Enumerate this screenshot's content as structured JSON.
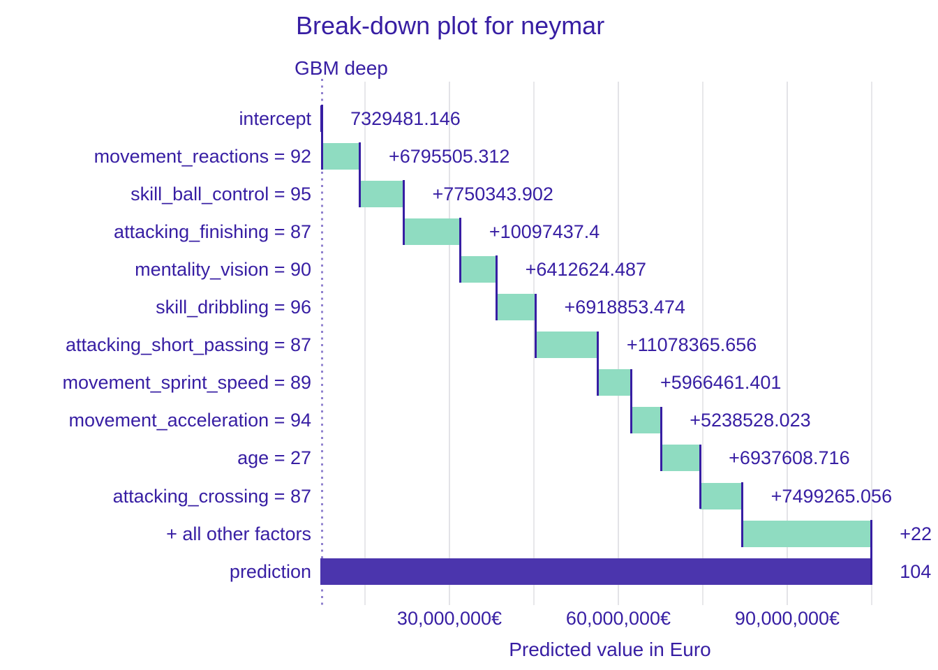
{
  "chart_data": {
    "type": "bar",
    "variant": "waterfall-breakdown",
    "title": "Break-down plot for neymar",
    "subtitle": "GBM deep",
    "xlabel": "Predicted value in Euro",
    "x_axis": {
      "ticks": [
        {
          "value": 30000000,
          "label": "30,000,000€"
        },
        {
          "value": 60000000,
          "label": "60,000,000€"
        },
        {
          "value": 90000000,
          "label": "90,000,000€"
        }
      ],
      "minor_gridlines": [
        15000000,
        45000000,
        75000000,
        105000000
      ],
      "visible_range_eur": [
        7100000,
        110000000
      ]
    },
    "rows": [
      {
        "label": "intercept",
        "kind": "intercept",
        "start": 0,
        "end": 7329481.146,
        "value_label": "7329481.146"
      },
      {
        "label": "movement_reactions = 92",
        "kind": "contribution",
        "start": 7329481.146,
        "end": 14124986.458,
        "value_label": "+6795505.312"
      },
      {
        "label": "skill_ball_control = 95",
        "kind": "contribution",
        "start": 14124986.458,
        "end": 21875330.36,
        "value_label": "+7750343.902"
      },
      {
        "label": "attacking_finishing = 87",
        "kind": "contribution",
        "start": 21875330.36,
        "end": 31972767.76,
        "value_label": "+10097437.4"
      },
      {
        "label": "mentality_vision = 90",
        "kind": "contribution",
        "start": 31972767.76,
        "end": 38385392.247,
        "value_label": "+6412624.487"
      },
      {
        "label": "skill_dribbling = 96",
        "kind": "contribution",
        "start": 38385392.247,
        "end": 45304245.721,
        "value_label": "+6918853.474"
      },
      {
        "label": "attacking_short_passing = 87",
        "kind": "contribution",
        "start": 45304245.721,
        "end": 56382611.377,
        "value_label": "+11078365.656"
      },
      {
        "label": "movement_sprint_speed = 89",
        "kind": "contribution",
        "start": 56382611.377,
        "end": 62349072.778,
        "value_label": "+5966461.401"
      },
      {
        "label": "movement_acceleration = 94",
        "kind": "contribution",
        "start": 62349072.778,
        "end": 67587600.801,
        "value_label": "+5238528.023"
      },
      {
        "label": "age = 27",
        "kind": "contribution",
        "start": 67587600.801,
        "end": 74525209.517,
        "value_label": "+6937608.716"
      },
      {
        "label": "attacking_crossing = 87",
        "kind": "contribution",
        "start": 74525209.517,
        "end": 82024474.573,
        "value_label": "+7499265.056"
      },
      {
        "label": "+ all other factors",
        "kind": "contribution",
        "start": 82024474.573,
        "end": 104900000,
        "value_label": "+22",
        "value_label_clipped": true
      },
      {
        "label": "prediction",
        "kind": "prediction",
        "start": 0,
        "end": 104900000,
        "value_label": "104",
        "value_label_clipped": true
      }
    ],
    "colors": {
      "text": "#371ea3",
      "positive_bar": "#8fdcc1",
      "prediction_bar": "#4b35ad",
      "intercept_bar": "#371ea3",
      "connector": "#371ea3",
      "gridline_major": "#e3e3e7",
      "gridline_minor": "#e7e7ea",
      "dotted_line": "#8f80ce",
      "background": "#ffffff"
    }
  }
}
